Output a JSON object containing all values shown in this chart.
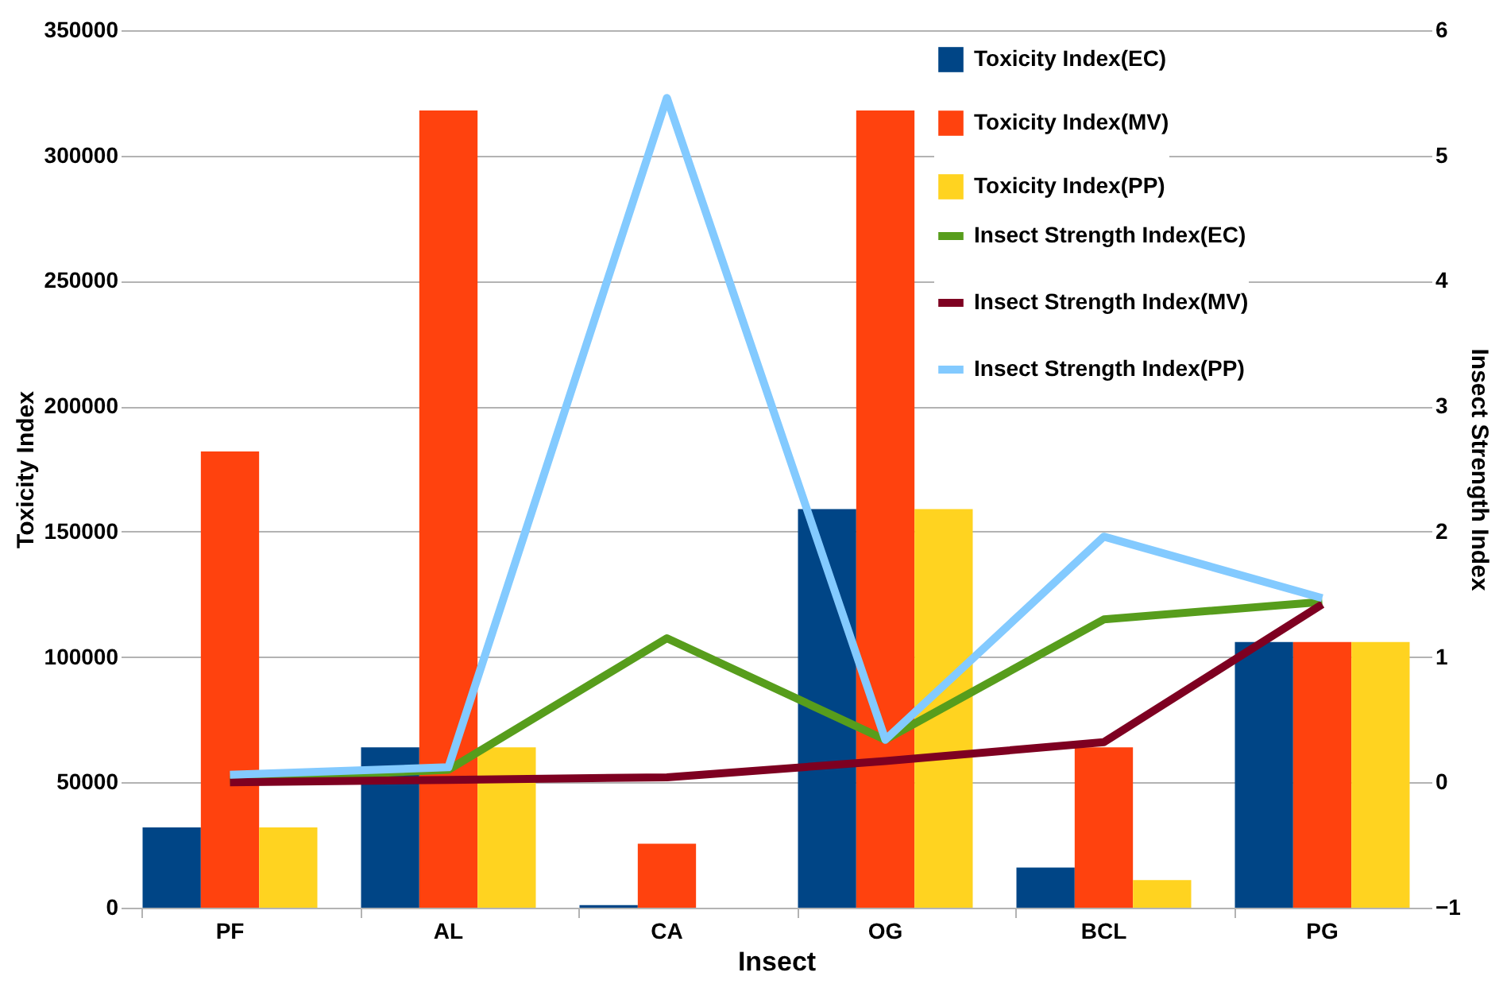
{
  "chart_data": {
    "type": "bar",
    "xlabel": "Insect",
    "ylabel": "Toxicity Index",
    "y2label": "Insect Strength Index",
    "categories": [
      "PF",
      "AL",
      "CA",
      "OG",
      "BCL",
      "PG"
    ],
    "series": [
      {
        "name": "Toxicity Index(EC)",
        "type": "bar",
        "color": "#004586",
        "values": [
          32000,
          64000,
          1000,
          159000,
          16000,
          106000
        ]
      },
      {
        "name": "Toxicity Index(MV)",
        "type": "bar",
        "color": "#ff420e",
        "values": [
          182000,
          318000,
          25500,
          318000,
          64000,
          106000
        ]
      },
      {
        "name": "Toxicity Index(PP)",
        "type": "bar",
        "color": "#ffd320",
        "values": [
          32000,
          64000,
          0,
          159000,
          11000,
          106000
        ]
      },
      {
        "name": "Insect Strength Index(EC)",
        "type": "line",
        "axis": "y2",
        "color": "#579d1c",
        "values": [
          0.02,
          0.1,
          1.15,
          0.34,
          1.3,
          1.44
        ]
      },
      {
        "name": "Insect Strength Index(MV)",
        "type": "line",
        "axis": "y2",
        "color": "#7e0021",
        "values": [
          0.0,
          0.02,
          0.04,
          0.17,
          0.32,
          1.42
        ]
      },
      {
        "name": "Insect Strength Index(PP)",
        "type": "line",
        "axis": "y2",
        "color": "#83caff",
        "values": [
          0.06,
          0.12,
          5.46,
          0.34,
          1.96,
          1.47
        ]
      }
    ],
    "ylim": [
      0,
      350000
    ],
    "yticks": [
      0,
      50000,
      100000,
      150000,
      200000,
      250000,
      300000,
      350000
    ],
    "y2lim": [
      -1,
      6
    ],
    "y2ticks": [
      -1,
      0,
      1,
      2,
      3,
      4,
      5,
      6
    ],
    "grid": "y",
    "legend": "top right"
  }
}
